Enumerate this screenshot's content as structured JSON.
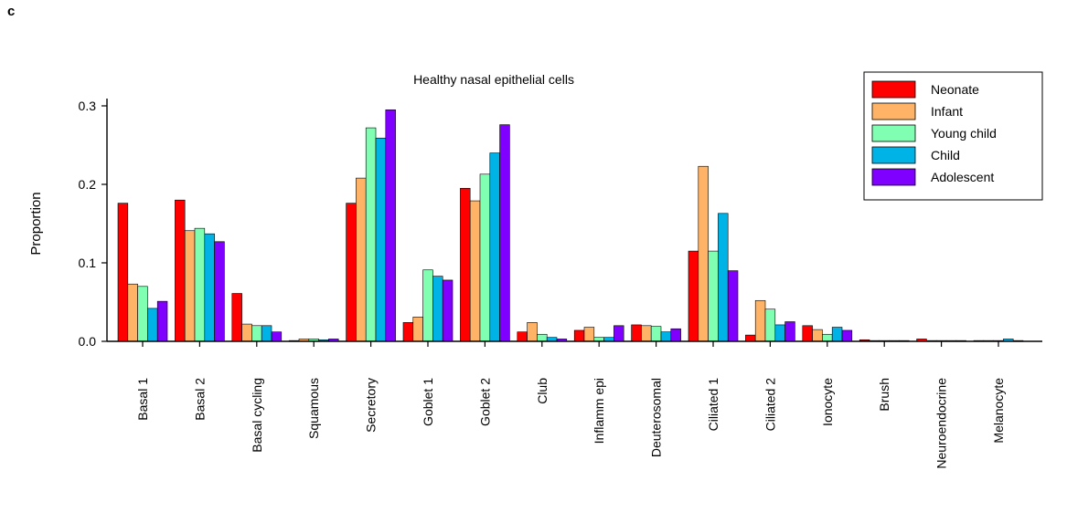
{
  "panel_label": "c",
  "chart_data": {
    "type": "bar",
    "title": "Healthy nasal epithelial cells",
    "xlabel": "",
    "ylabel": "Proportion",
    "ylim": [
      0,
      0.3
    ],
    "yticks": [
      "0.0",
      "0.1",
      "0.2",
      "0.3"
    ],
    "grid": false,
    "legend_position": "top-right",
    "categories": [
      "Basal 1",
      "Basal 2",
      "Basal cycling",
      "Squamous",
      "Secretory",
      "Goblet 1",
      "Goblet 2",
      "Club",
      "Inflamm epi",
      "Deuterosomal",
      "Ciliated 1",
      "Ciliated 2",
      "Ionocyte",
      "Brush",
      "Neuroendocrine",
      "Melanocyte"
    ],
    "series": [
      {
        "name": "Neonate",
        "color": "#ff0000",
        "values": [
          0.176,
          0.18,
          0.061,
          0.001,
          0.176,
          0.024,
          0.195,
          0.012,
          0.014,
          0.021,
          0.115,
          0.008,
          0.02,
          0.002,
          0.003,
          0.001
        ]
      },
      {
        "name": "Infant",
        "color": "#ffb366",
        "values": [
          0.073,
          0.141,
          0.022,
          0.003,
          0.208,
          0.031,
          0.179,
          0.024,
          0.018,
          0.02,
          0.223,
          0.052,
          0.015,
          0.001,
          0.001,
          0.001
        ]
      },
      {
        "name": "Young child",
        "color": "#80ffb3",
        "values": [
          0.07,
          0.144,
          0.02,
          0.003,
          0.272,
          0.091,
          0.213,
          0.009,
          0.005,
          0.019,
          0.115,
          0.041,
          0.009,
          0.001,
          0.001,
          0.001
        ]
      },
      {
        "name": "Child",
        "color": "#00b3e6",
        "values": [
          0.042,
          0.137,
          0.02,
          0.002,
          0.259,
          0.083,
          0.24,
          0.005,
          0.005,
          0.012,
          0.163,
          0.021,
          0.018,
          0.001,
          0.001,
          0.003
        ]
      },
      {
        "name": "Adolescent",
        "color": "#8000ff",
        "values": [
          0.051,
          0.127,
          0.012,
          0.003,
          0.295,
          0.078,
          0.276,
          0.003,
          0.02,
          0.016,
          0.09,
          0.025,
          0.014,
          0.001,
          0.001,
          0.001
        ]
      }
    ]
  }
}
